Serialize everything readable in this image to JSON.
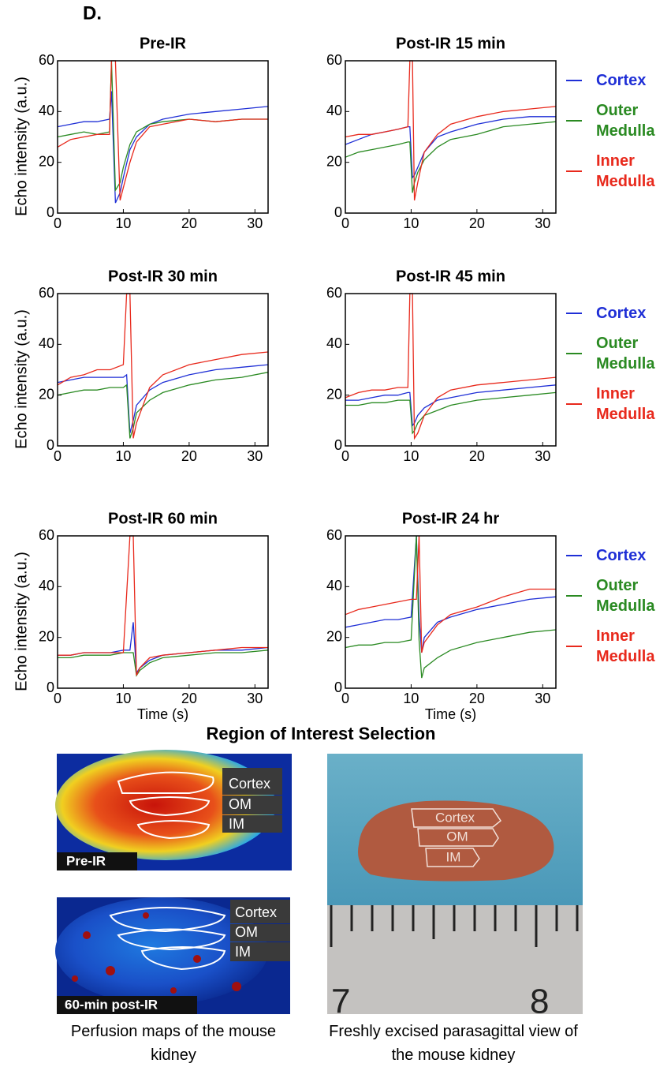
{
  "panel_label": "D.",
  "chart_data": [
    {
      "type": "line",
      "title": "Pre-IR",
      "ylabel": "Echo intensity (a.u.)",
      "xlim": [
        0,
        32
      ],
      "ylim": [
        0,
        60
      ],
      "xticks": [
        0,
        10,
        20,
        30
      ],
      "yticks": [
        0,
        20,
        40,
        60
      ],
      "x": [
        0,
        2,
        4,
        6,
        7.9,
        8.2,
        8.8,
        9.5,
        10,
        11,
        12,
        14,
        16,
        20,
        24,
        28,
        32
      ],
      "series": [
        {
          "color": "#1f2fd6",
          "values": [
            34,
            35,
            36,
            36,
            37,
            48,
            4,
            8,
            14,
            25,
            30,
            35,
            37,
            39,
            40,
            41,
            42
          ]
        },
        {
          "color": "#2a8a22",
          "values": [
            30,
            31,
            32,
            31,
            32,
            60,
            9,
            12,
            18,
            27,
            32,
            35,
            36,
            37,
            36,
            37,
            37
          ]
        },
        {
          "color": "#e8291c",
          "values": [
            26,
            29,
            30,
            31,
            31,
            60,
            60,
            5,
            10,
            20,
            28,
            34,
            35,
            37,
            36,
            37,
            37
          ]
        }
      ]
    },
    {
      "type": "line",
      "title": "Post-IR 15 min",
      "xlim": [
        0,
        32
      ],
      "ylim": [
        0,
        60
      ],
      "xticks": [
        0,
        10,
        20,
        30
      ],
      "yticks": [
        0,
        20,
        40,
        60
      ],
      "x": [
        0,
        2,
        4,
        6,
        8,
        9.5,
        9.8,
        10.2,
        10.5,
        11,
        12,
        14,
        16,
        20,
        24,
        28,
        32
      ],
      "series": [
        {
          "name": "Cortex",
          "color": "#1f2fd6",
          "values": [
            27,
            29,
            31,
            32,
            33,
            34,
            34,
            14,
            15,
            18,
            24,
            30,
            32,
            35,
            37,
            38,
            38
          ]
        },
        {
          "name": "Outer Medulla",
          "color": "#2a8a22",
          "values": [
            22,
            24,
            25,
            26,
            27,
            28,
            28,
            8,
            12,
            16,
            21,
            26,
            29,
            31,
            34,
            35,
            36
          ]
        },
        {
          "name": "Inner Medulla",
          "color": "#e8291c",
          "values": [
            30,
            31,
            31,
            32,
            33,
            34,
            60,
            60,
            5,
            12,
            24,
            31,
            35,
            38,
            40,
            41,
            42
          ]
        }
      ]
    },
    {
      "type": "line",
      "title": "Post-IR 30 min",
      "ylabel": "Echo intensity (a.u.)",
      "xlim": [
        0,
        32
      ],
      "ylim": [
        0,
        60
      ],
      "xticks": [
        0,
        10,
        20,
        30
      ],
      "yticks": [
        0,
        20,
        40,
        60
      ],
      "x": [
        0,
        2,
        4,
        6,
        8,
        10,
        10.5,
        11,
        11.5,
        12,
        14,
        16,
        20,
        24,
        28,
        32
      ],
      "series": [
        {
          "color": "#1f2fd6",
          "values": [
            25,
            26,
            27,
            27,
            27,
            27,
            28,
            5,
            10,
            16,
            22,
            25,
            28,
            30,
            31,
            32
          ]
        },
        {
          "color": "#2a8a22",
          "values": [
            20,
            21,
            22,
            22,
            23,
            23,
            24,
            3,
            7,
            13,
            18,
            21,
            24,
            26,
            27,
            29
          ]
        },
        {
          "color": "#e8291c",
          "values": [
            24,
            27,
            28,
            30,
            30,
            32,
            60,
            60,
            3,
            9,
            23,
            28,
            32,
            34,
            36,
            37
          ]
        }
      ]
    },
    {
      "type": "line",
      "title": "Post-IR 45 min",
      "xlim": [
        0,
        32
      ],
      "ylim": [
        0,
        60
      ],
      "xticks": [
        0,
        10,
        20,
        30
      ],
      "yticks": [
        0,
        20,
        40,
        60
      ],
      "x": [
        0,
        2,
        4,
        6,
        8,
        9.5,
        9.8,
        10.2,
        10.5,
        11,
        12,
        14,
        16,
        20,
        24,
        28,
        32
      ],
      "series": [
        {
          "name": "Cortex",
          "color": "#1f2fd6",
          "values": [
            18,
            18,
            19,
            20,
            20,
            21,
            21,
            8,
            9,
            12,
            15,
            18,
            19,
            21,
            22,
            23,
            24
          ]
        },
        {
          "name": "Outer Medulla",
          "color": "#2a8a22",
          "values": [
            16,
            16,
            17,
            17,
            18,
            18,
            18,
            5,
            6,
            9,
            12,
            14,
            16,
            18,
            19,
            20,
            21
          ]
        },
        {
          "name": "Inner Medulla",
          "color": "#e8291c",
          "values": [
            19,
            21,
            22,
            22,
            23,
            23,
            60,
            60,
            3,
            5,
            12,
            19,
            22,
            24,
            25,
            26,
            27
          ]
        }
      ]
    },
    {
      "type": "line",
      "title": "Post-IR 60 min",
      "ylabel": "Echo intensity (a.u.)",
      "xlabel": "Time (s)",
      "xlim": [
        0,
        32
      ],
      "ylim": [
        0,
        60
      ],
      "xticks": [
        0,
        10,
        20,
        30
      ],
      "yticks": [
        0,
        20,
        40,
        60
      ],
      "x": [
        0,
        2,
        4,
        6,
        8,
        10,
        11,
        11.5,
        12,
        12.5,
        14,
        16,
        20,
        24,
        28,
        32
      ],
      "series": [
        {
          "color": "#1f2fd6",
          "values": [
            13,
            13,
            14,
            14,
            14,
            15,
            15,
            26,
            6,
            8,
            11,
            13,
            14,
            15,
            15,
            16
          ]
        },
        {
          "color": "#2a8a22",
          "values": [
            12,
            12,
            13,
            13,
            13,
            14,
            14,
            14,
            5,
            7,
            10,
            12,
            13,
            14,
            14,
            15
          ]
        },
        {
          "color": "#e8291c",
          "values": [
            13,
            13,
            14,
            14,
            14,
            14,
            60,
            60,
            5,
            8,
            12,
            13,
            14,
            15,
            16,
            16
          ]
        }
      ]
    },
    {
      "type": "line",
      "title": "Post-IR 24 hr",
      "xlabel": "Time (s)",
      "xlim": [
        0,
        32
      ],
      "ylim": [
        0,
        60
      ],
      "xticks": [
        0,
        10,
        20,
        30
      ],
      "yticks": [
        0,
        20,
        40,
        60
      ],
      "x": [
        0,
        2,
        4,
        6,
        8,
        10,
        10.8,
        11.2,
        11.6,
        12,
        14,
        16,
        20,
        24,
        28,
        32
      ],
      "series": [
        {
          "name": "Cortex",
          "color": "#1f2fd6",
          "values": [
            24,
            25,
            26,
            27,
            27,
            28,
            60,
            28,
            14,
            20,
            26,
            28,
            31,
            33,
            35,
            36
          ]
        },
        {
          "name": "Outer Medulla",
          "color": "#2a8a22",
          "values": [
            16,
            17,
            17,
            18,
            18,
            19,
            60,
            19,
            4,
            8,
            12,
            15,
            18,
            20,
            22,
            23
          ]
        },
        {
          "name": "Inner Medulla",
          "color": "#e8291c",
          "values": [
            29,
            31,
            32,
            33,
            34,
            35,
            35,
            60,
            14,
            18,
            25,
            29,
            32,
            36,
            39,
            39
          ]
        }
      ]
    }
  ],
  "roi": {
    "title": "Region of Interest Selection",
    "maps": [
      {
        "label": "Pre-IR",
        "regions": [
          "Cortex",
          "OM",
          "IM"
        ]
      },
      {
        "label": "60-min post-IR",
        "regions": [
          "Cortex",
          "OM",
          "IM"
        ]
      }
    ],
    "map_caption": "Perfusion maps of the mouse kidney",
    "photo": {
      "regions": [
        "Cortex",
        "OM",
        "IM"
      ],
      "ruler": [
        "7",
        "8"
      ]
    },
    "photo_caption": "Freshly excised parasagittal view of the mouse kidney"
  }
}
